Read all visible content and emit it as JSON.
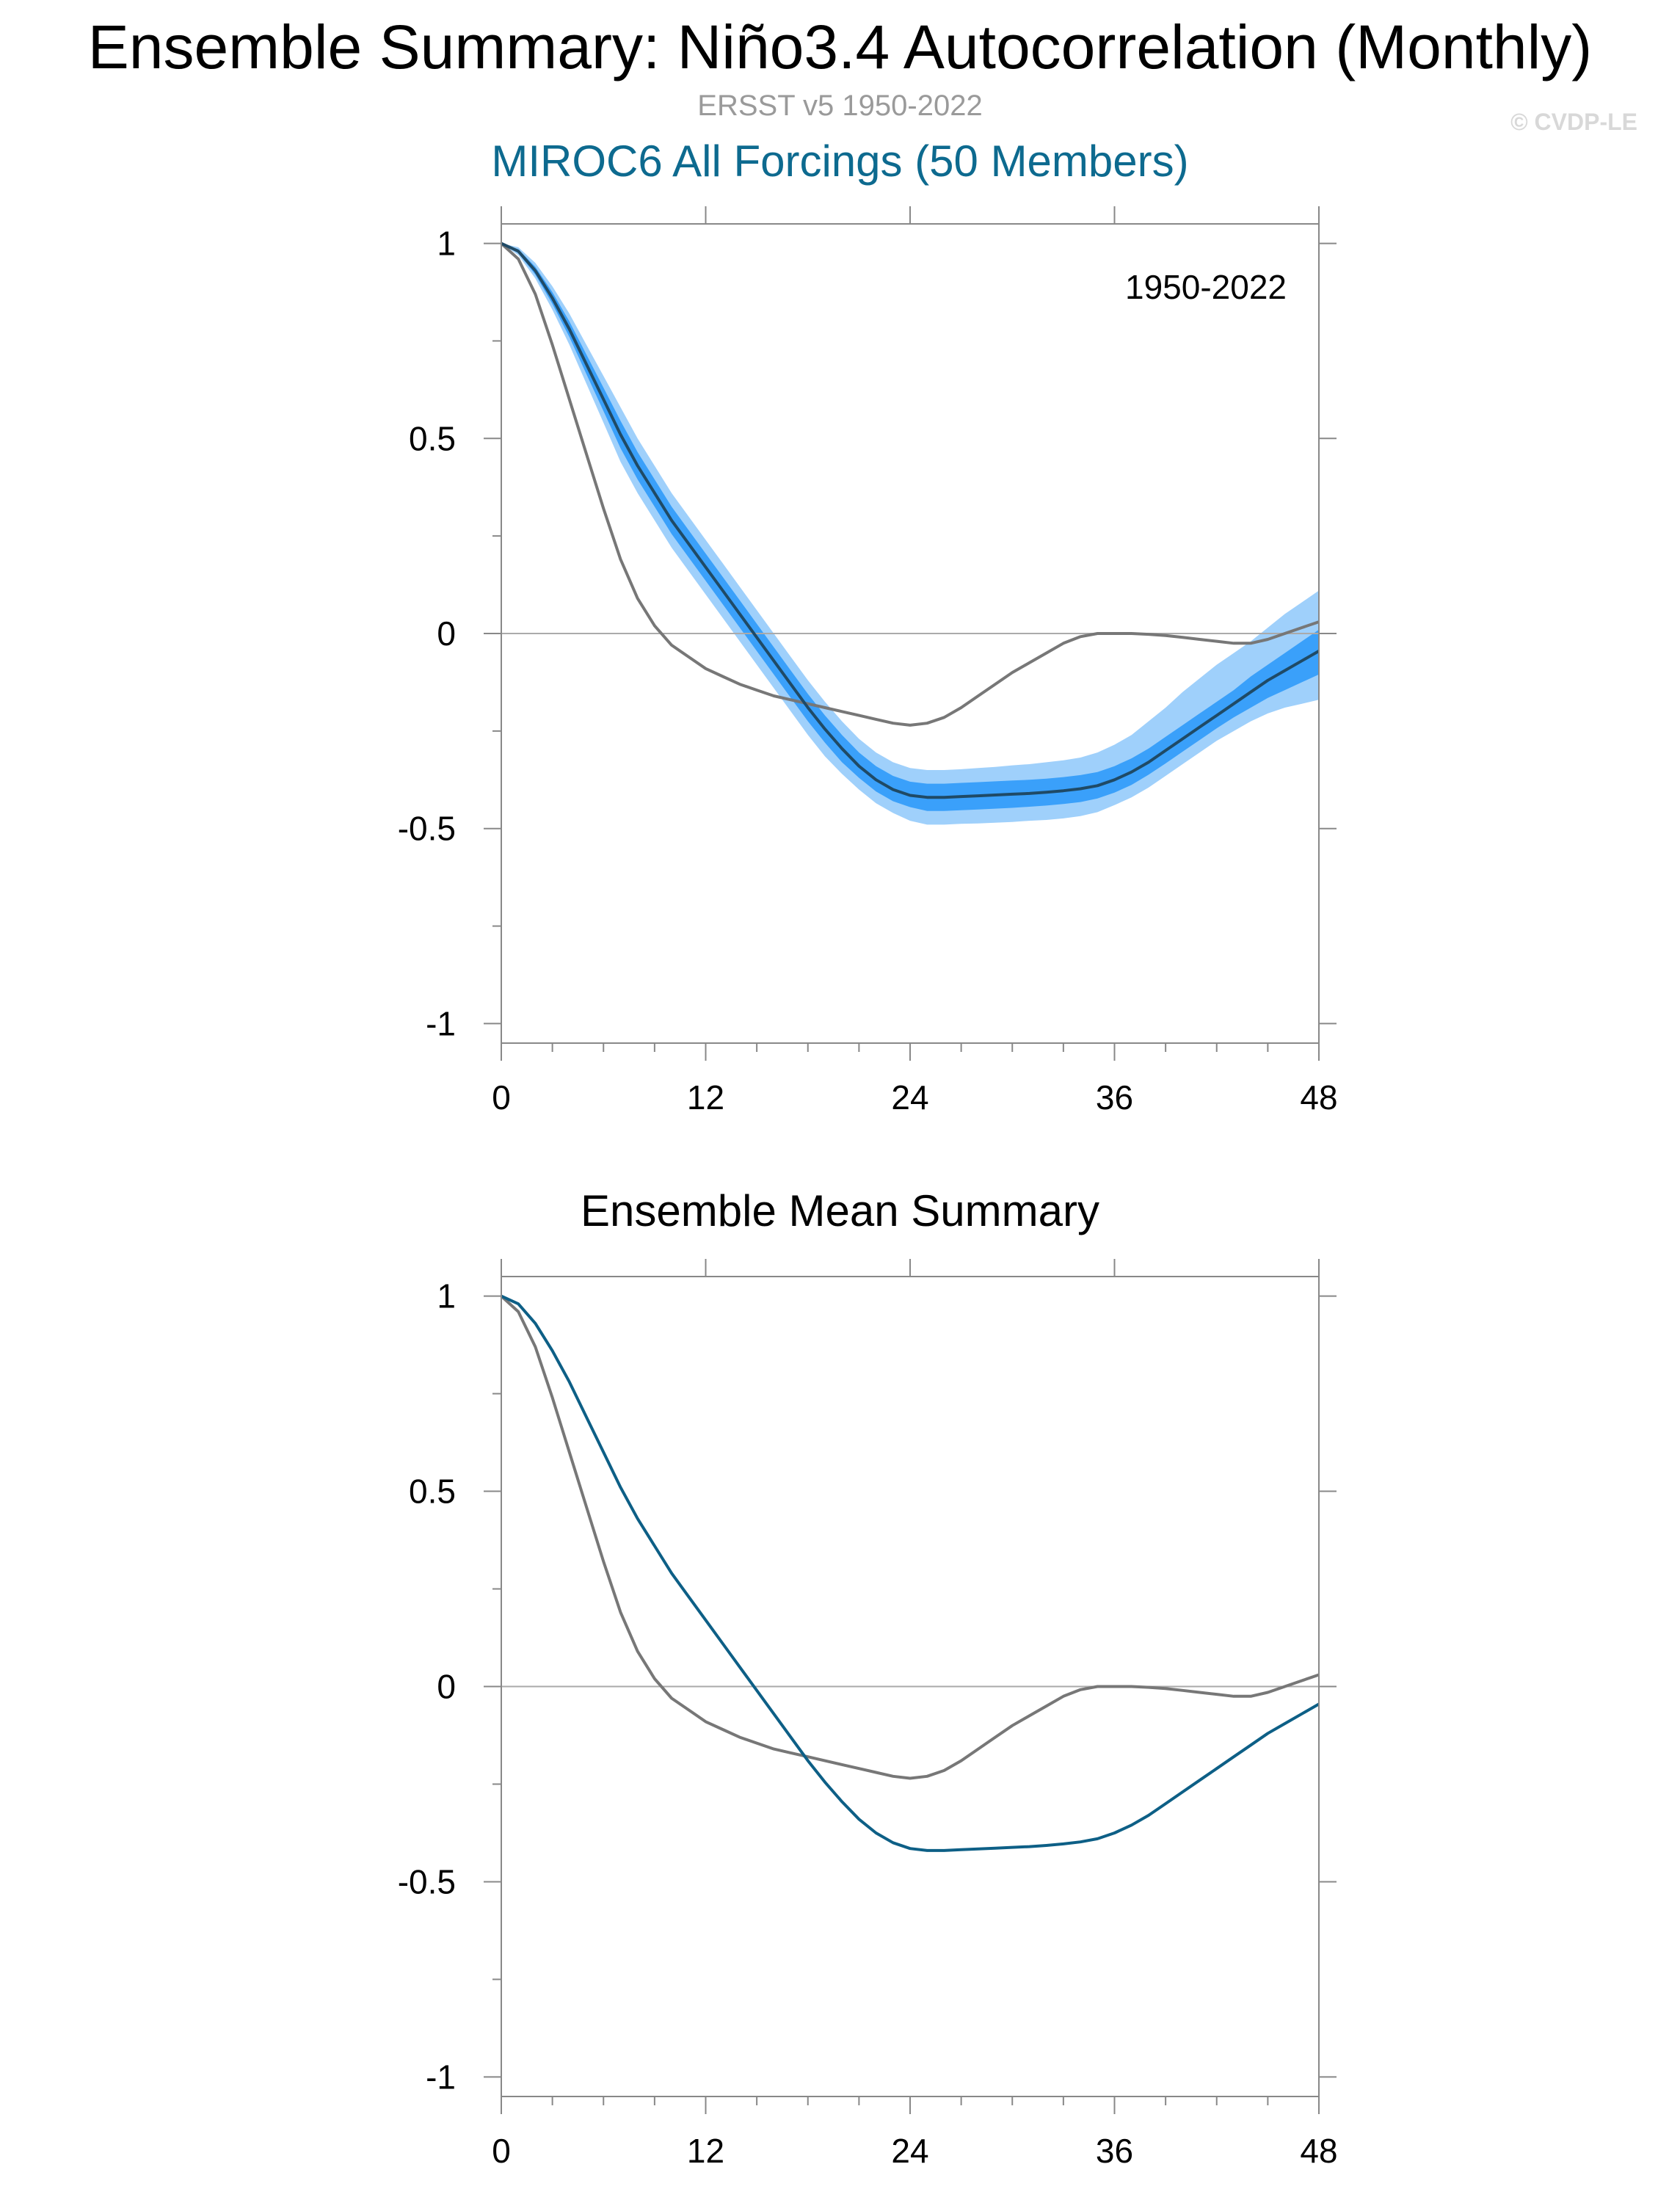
{
  "title": "Ensemble Summary: Niño3.4 Autocorrelation (Monthly)",
  "subtitle": "ERSST v5 1950-2022",
  "credit": "© CVDP-LE",
  "model_title": "MIROC6 All Forcings (50 Members)",
  "mean_title": "Ensemble Mean Summary",
  "colors": {
    "observations": "#777777",
    "ensemble_mean": "#0d5f86",
    "ensemble_mean_top_panel": "#1f4a66",
    "outer_spread": "#9fd0fb",
    "inner_spread": "#3aa0fa",
    "zero_line": "#aaaaaa"
  },
  "chart_data": [
    {
      "type": "line",
      "title": "MIROC6 All Forcings (50 Members)",
      "annotation": "1950-2022",
      "xlim": [
        0,
        48
      ],
      "ylim": [
        -1.05,
        1.05
      ],
      "xticks": [
        "0",
        "12",
        "24",
        "36",
        "48"
      ],
      "yticks": [
        "1",
        "0.5",
        "0",
        "-0.5",
        "-1"
      ],
      "x": [
        0,
        1,
        2,
        3,
        4,
        5,
        6,
        7,
        8,
        9,
        10,
        11,
        12,
        13,
        14,
        15,
        16,
        17,
        18,
        19,
        20,
        21,
        22,
        23,
        24,
        25,
        26,
        27,
        28,
        29,
        30,
        31,
        32,
        33,
        34,
        35,
        36,
        37,
        38,
        39,
        40,
        41,
        42,
        43,
        44,
        45,
        46,
        47,
        48
      ],
      "series": [
        {
          "role": "observations",
          "values": [
            1.0,
            0.96,
            0.87,
            0.74,
            0.6,
            0.46,
            0.32,
            0.19,
            0.09,
            0.02,
            -0.03,
            -0.06,
            -0.09,
            -0.11,
            -0.13,
            -0.145,
            -0.16,
            -0.17,
            -0.18,
            -0.19,
            -0.2,
            -0.21,
            -0.22,
            -0.23,
            -0.235,
            -0.23,
            -0.215,
            -0.19,
            -0.16,
            -0.13,
            -0.1,
            -0.075,
            -0.05,
            -0.025,
            -0.008,
            0.0,
            0.0,
            0.0,
            -0.002,
            -0.005,
            -0.01,
            -0.015,
            -0.02,
            -0.025,
            -0.025,
            -0.015,
            0.0,
            0.015,
            0.03
          ]
        },
        {
          "role": "ensemble_mean",
          "values": [
            1.0,
            0.98,
            0.93,
            0.86,
            0.78,
            0.69,
            0.6,
            0.51,
            0.43,
            0.36,
            0.29,
            0.23,
            0.17,
            0.11,
            0.05,
            -0.01,
            -0.07,
            -0.13,
            -0.19,
            -0.245,
            -0.295,
            -0.34,
            -0.375,
            -0.4,
            -0.415,
            -0.42,
            -0.42,
            -0.418,
            -0.416,
            -0.414,
            -0.412,
            -0.41,
            -0.407,
            -0.403,
            -0.398,
            -0.39,
            -0.375,
            -0.355,
            -0.33,
            -0.3,
            -0.27,
            -0.24,
            -0.21,
            -0.18,
            -0.15,
            -0.12,
            -0.095,
            -0.07,
            -0.045
          ]
        }
      ],
      "bands": [
        {
          "role": "outer_spread",
          "low": [
            1.0,
            0.97,
            0.91,
            0.83,
            0.74,
            0.64,
            0.54,
            0.44,
            0.36,
            0.29,
            0.22,
            0.16,
            0.1,
            0.04,
            -0.02,
            -0.08,
            -0.14,
            -0.2,
            -0.26,
            -0.315,
            -0.36,
            -0.4,
            -0.435,
            -0.46,
            -0.48,
            -0.49,
            -0.49,
            -0.488,
            -0.487,
            -0.485,
            -0.483,
            -0.48,
            -0.478,
            -0.474,
            -0.468,
            -0.458,
            -0.44,
            -0.42,
            -0.395,
            -0.365,
            -0.335,
            -0.305,
            -0.275,
            -0.25,
            -0.225,
            -0.205,
            -0.19,
            -0.18,
            -0.17
          ],
          "high": [
            1.0,
            0.99,
            0.95,
            0.89,
            0.82,
            0.74,
            0.66,
            0.58,
            0.5,
            0.43,
            0.36,
            0.3,
            0.24,
            0.18,
            0.12,
            0.06,
            0.0,
            -0.06,
            -0.12,
            -0.175,
            -0.225,
            -0.27,
            -0.305,
            -0.33,
            -0.345,
            -0.35,
            -0.35,
            -0.348,
            -0.345,
            -0.342,
            -0.338,
            -0.335,
            -0.33,
            -0.325,
            -0.318,
            -0.305,
            -0.285,
            -0.26,
            -0.225,
            -0.19,
            -0.15,
            -0.115,
            -0.08,
            -0.05,
            -0.02,
            0.015,
            0.05,
            0.08,
            0.11
          ]
        },
        {
          "role": "inner_spread",
          "low": [
            1.0,
            0.975,
            0.92,
            0.845,
            0.76,
            0.665,
            0.57,
            0.475,
            0.395,
            0.325,
            0.255,
            0.195,
            0.135,
            0.075,
            0.015,
            -0.045,
            -0.105,
            -0.165,
            -0.225,
            -0.28,
            -0.33,
            -0.37,
            -0.405,
            -0.43,
            -0.445,
            -0.455,
            -0.455,
            -0.453,
            -0.451,
            -0.449,
            -0.447,
            -0.444,
            -0.441,
            -0.437,
            -0.432,
            -0.423,
            -0.408,
            -0.388,
            -0.362,
            -0.333,
            -0.303,
            -0.273,
            -0.243,
            -0.215,
            -0.19,
            -0.165,
            -0.145,
            -0.125,
            -0.105
          ],
          "high": [
            1.0,
            0.985,
            0.94,
            0.875,
            0.8,
            0.715,
            0.63,
            0.545,
            0.465,
            0.395,
            0.325,
            0.265,
            0.205,
            0.145,
            0.085,
            0.025,
            -0.035,
            -0.095,
            -0.155,
            -0.21,
            -0.26,
            -0.305,
            -0.34,
            -0.365,
            -0.38,
            -0.385,
            -0.385,
            -0.383,
            -0.381,
            -0.379,
            -0.377,
            -0.375,
            -0.372,
            -0.368,
            -0.363,
            -0.355,
            -0.34,
            -0.32,
            -0.295,
            -0.265,
            -0.235,
            -0.205,
            -0.175,
            -0.145,
            -0.11,
            -0.08,
            -0.05,
            -0.02,
            0.01
          ]
        }
      ]
    },
    {
      "type": "line",
      "title": "Ensemble Mean Summary",
      "xlim": [
        0,
        48
      ],
      "ylim": [
        -1.05,
        1.05
      ],
      "xticks": [
        "0",
        "12",
        "24",
        "36",
        "48"
      ],
      "yticks": [
        "1",
        "0.5",
        "0",
        "-0.5",
        "-1"
      ],
      "x": [
        0,
        1,
        2,
        3,
        4,
        5,
        6,
        7,
        8,
        9,
        10,
        11,
        12,
        13,
        14,
        15,
        16,
        17,
        18,
        19,
        20,
        21,
        22,
        23,
        24,
        25,
        26,
        27,
        28,
        29,
        30,
        31,
        32,
        33,
        34,
        35,
        36,
        37,
        38,
        39,
        40,
        41,
        42,
        43,
        44,
        45,
        46,
        47,
        48
      ],
      "series": [
        {
          "role": "observations",
          "values": [
            1.0,
            0.96,
            0.87,
            0.74,
            0.6,
            0.46,
            0.32,
            0.19,
            0.09,
            0.02,
            -0.03,
            -0.06,
            -0.09,
            -0.11,
            -0.13,
            -0.145,
            -0.16,
            -0.17,
            -0.18,
            -0.19,
            -0.2,
            -0.21,
            -0.22,
            -0.23,
            -0.235,
            -0.23,
            -0.215,
            -0.19,
            -0.16,
            -0.13,
            -0.1,
            -0.075,
            -0.05,
            -0.025,
            -0.008,
            0.0,
            0.0,
            0.0,
            -0.002,
            -0.005,
            -0.01,
            -0.015,
            -0.02,
            -0.025,
            -0.025,
            -0.015,
            0.0,
            0.015,
            0.03
          ]
        },
        {
          "role": "ensemble_mean",
          "values": [
            1.0,
            0.98,
            0.93,
            0.86,
            0.78,
            0.69,
            0.6,
            0.51,
            0.43,
            0.36,
            0.29,
            0.23,
            0.17,
            0.11,
            0.05,
            -0.01,
            -0.07,
            -0.13,
            -0.19,
            -0.245,
            -0.295,
            -0.34,
            -0.375,
            -0.4,
            -0.415,
            -0.42,
            -0.42,
            -0.418,
            -0.416,
            -0.414,
            -0.412,
            -0.41,
            -0.407,
            -0.403,
            -0.398,
            -0.39,
            -0.375,
            -0.355,
            -0.33,
            -0.3,
            -0.27,
            -0.24,
            -0.21,
            -0.18,
            -0.15,
            -0.12,
            -0.095,
            -0.07,
            -0.045
          ]
        }
      ]
    }
  ]
}
